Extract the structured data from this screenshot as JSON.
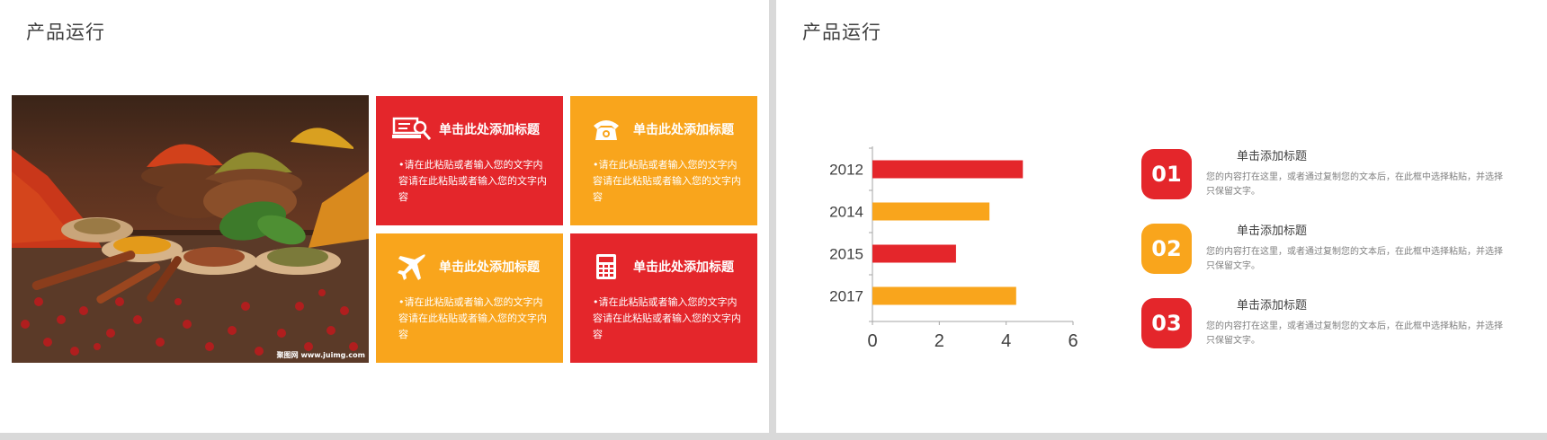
{
  "left_slide": {
    "title": "产品运行",
    "photo": {
      "watermark": "聚图网 www.juimg.com",
      "icon": "spices-photo"
    },
    "tiles": [
      {
        "title": "单击此处添加标题",
        "text": "•请在此粘贴或者输入您的文字内容请在此粘贴或者输入您的文字内容",
        "color": "#e4262b",
        "icon": "search-computer-icon"
      },
      {
        "title": "单击此处添加标题",
        "text": "•请在此粘贴或者输入您的文字内容请在此粘贴或者输入您的文字内容",
        "color": "#f9a51c",
        "icon": "telephone-icon"
      },
      {
        "title": "单击此处添加标题",
        "text": "•请在此粘贴或者输入您的文字内容请在此粘贴或者输入您的文字内容",
        "color": "#f9a51c",
        "icon": "airplane-icon"
      },
      {
        "title": "单击此处添加标题",
        "text": "•请在此粘贴或者输入您的文字内容请在此粘贴或者输入您的文字内容",
        "color": "#e4262b",
        "icon": "calculator-icon"
      }
    ]
  },
  "right_slide": {
    "title": "产品运行",
    "items": [
      {
        "number": "01",
        "title": "单击添加标题",
        "desc": "您的内容打在这里，或者通过复制您的文本后，在此框中选择粘贴，并选择只保留文字。",
        "color": "#e4262b"
      },
      {
        "number": "02",
        "title": "单击添加标题",
        "desc": "您的内容打在这里，或者通过复制您的文本后，在此框中选择粘贴，并选择只保留文字。",
        "color": "#f9a51c"
      },
      {
        "number": "03",
        "title": "单击添加标题",
        "desc": "您的内容打在这里，或者通过复制您的文本后，在此框中选择粘贴，并选择只保留文字。",
        "color": "#e4262b"
      }
    ]
  },
  "chart_data": {
    "type": "bar",
    "orientation": "horizontal",
    "categories": [
      "2012",
      "2014",
      "2015",
      "2017"
    ],
    "values": [
      4.5,
      3.5,
      2.5,
      4.3
    ],
    "bar_colors": [
      "#e4262b",
      "#f9a51c",
      "#e4262b",
      "#f9a51c"
    ],
    "x_ticks": [
      "0",
      "2",
      "4",
      "6"
    ],
    "xlim": [
      0,
      6
    ],
    "grid": false,
    "legend": "none"
  }
}
